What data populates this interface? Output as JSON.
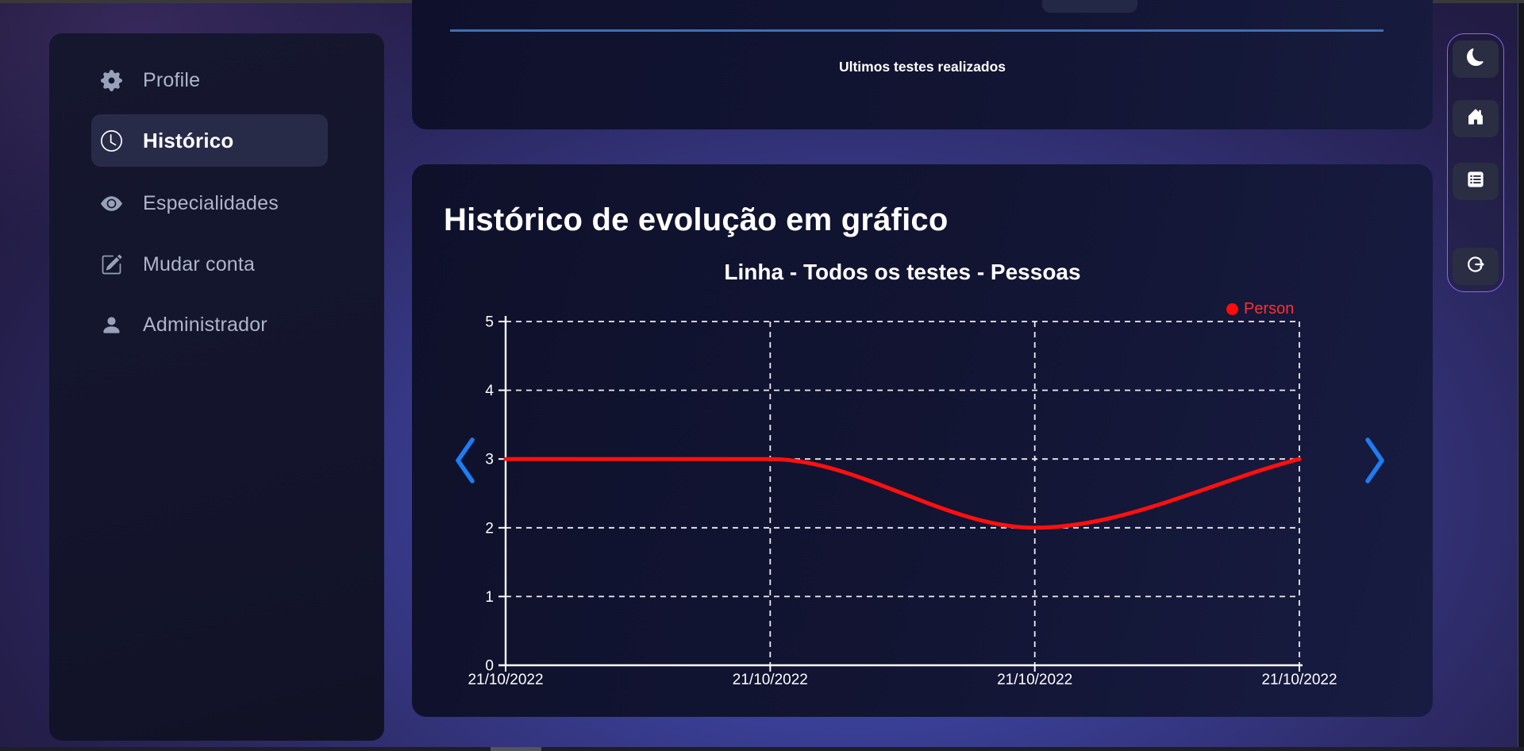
{
  "sidebar": {
    "items": [
      {
        "label": "Profile",
        "icon": "gear-icon",
        "active": false
      },
      {
        "label": "Histórico",
        "icon": "clock-icon",
        "active": true
      },
      {
        "label": "Especialidades",
        "icon": "eye-icon",
        "active": false
      },
      {
        "label": "Mudar conta",
        "icon": "edit-icon",
        "active": false
      },
      {
        "label": "Administrador",
        "icon": "person-icon",
        "active": false
      }
    ]
  },
  "top_card": {
    "heading": "Ultimos testes realizados"
  },
  "main_card": {
    "title": "Histórico de evolução em gráfico"
  },
  "toolbar": {
    "buttons": [
      {
        "icon": "moon-icon",
        "name": "dark-mode-button"
      },
      {
        "icon": "home-icon",
        "name": "home-button"
      },
      {
        "icon": "list-icon",
        "name": "list-button"
      },
      {
        "icon": "logout-icon",
        "name": "logout-button"
      }
    ],
    "border_color": "#8b69ef"
  },
  "pager": {
    "prev_color": "#1f7cf1",
    "next_color": "#1f7cf1"
  },
  "chart_data": {
    "type": "line",
    "title": "Linha - Todos os testes - Pessoas",
    "categories": [
      "21/10/2022",
      "21/10/2022",
      "21/10/2022",
      "21/10/2022"
    ],
    "series": [
      {
        "name": "Person",
        "values": [
          3,
          3,
          2,
          3
        ],
        "color": "#ff0f0f"
      }
    ],
    "ylim": [
      0,
      5
    ],
    "yticks": [
      0,
      1,
      2,
      3,
      4,
      5
    ],
    "grid": "dashed-white",
    "smooth": true,
    "legend_position": "top-right",
    "axis_color": "#ffffff",
    "divider_color": "#3d6fb6"
  }
}
